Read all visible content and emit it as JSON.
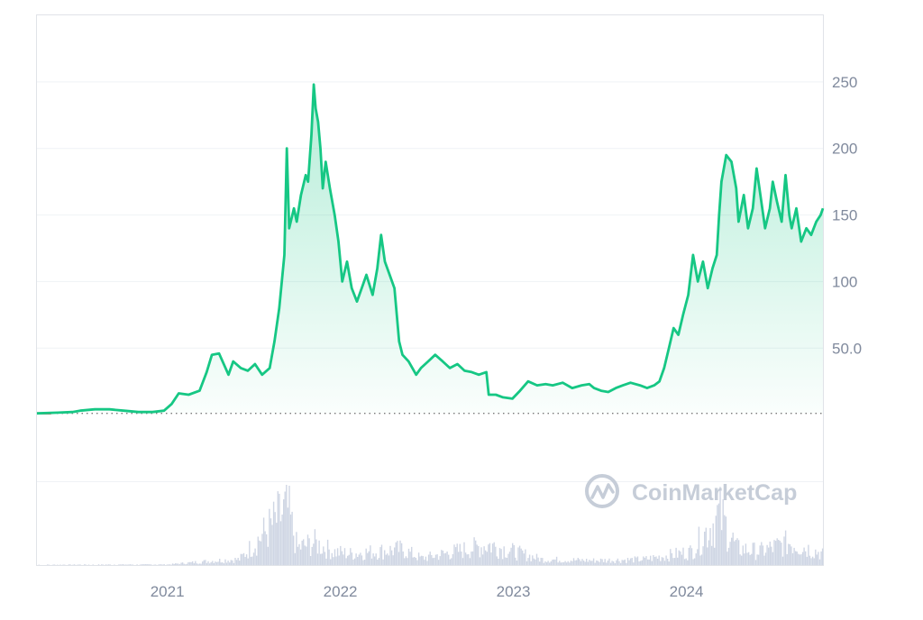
{
  "watermark": {
    "text": "CoinMarketCap",
    "icon": "coinmarketcap-logo-icon"
  },
  "colors": {
    "line": "#16c784",
    "area_top": "#16c784",
    "baseline_dots": "#7a7a7a",
    "pre_baseline": "#ea3943",
    "grid": "#eff2f5",
    "frame": "#e0e3e8",
    "tick_text": "#808a9d",
    "volume": "#cfd6e4",
    "watermark": "#c6cdd8"
  },
  "chart_data": {
    "type": "area",
    "title": "",
    "xlabel": "",
    "ylabel": "",
    "xlim": [
      "2020-04-01",
      "2024-10-15"
    ],
    "ylim": [
      -50,
      300
    ],
    "y_ticks": [
      50,
      100,
      150,
      200,
      250
    ],
    "y_tick_labels": [
      "50.0",
      "100",
      "150",
      "200",
      "250"
    ],
    "x_ticks": [
      "2021-01-01",
      "2022-01-01",
      "2023-01-01",
      "2024-01-01"
    ],
    "x_tick_labels": [
      "2021",
      "2022",
      "2023",
      "2024"
    ],
    "baseline": 1,
    "grid": true,
    "legend": "none",
    "series": [
      {
        "x": [
          "2020-04-01",
          "2020-05-15",
          "2020-06-15",
          "2020-07-01",
          "2020-08-01",
          "2020-09-01",
          "2020-10-01",
          "2020-11-01",
          "2020-12-01",
          "2020-12-25",
          "2021-01-10",
          "2021-01-25",
          "2021-02-15",
          "2021-03-10",
          "2021-03-25",
          "2021-04-05",
          "2021-04-20",
          "2021-05-10",
          "2021-05-20",
          "2021-06-05",
          "2021-06-20",
          "2021-07-05",
          "2021-07-20",
          "2021-08-05",
          "2021-08-15",
          "2021-08-25",
          "2021-09-05",
          "2021-09-10",
          "2021-09-15",
          "2021-09-25",
          "2021-10-01",
          "2021-10-10",
          "2021-10-20",
          "2021-10-25",
          "2021-11-01",
          "2021-11-06",
          "2021-11-10",
          "2021-11-15",
          "2021-11-20",
          "2021-11-25",
          "2021-12-01",
          "2021-12-10",
          "2021-12-20",
          "2021-12-28",
          "2022-01-05",
          "2022-01-15",
          "2022-01-25",
          "2022-02-05",
          "2022-02-15",
          "2022-02-25",
          "2022-03-10",
          "2022-03-20",
          "2022-03-28",
          "2022-04-05",
          "2022-04-15",
          "2022-04-25",
          "2022-05-05",
          "2022-05-12",
          "2022-05-25",
          "2022-06-10",
          "2022-06-20",
          "2022-07-05",
          "2022-07-20",
          "2022-08-05",
          "2022-08-20",
          "2022-09-05",
          "2022-09-20",
          "2022-10-05",
          "2022-10-20",
          "2022-11-05",
          "2022-11-10",
          "2022-11-25",
          "2022-12-10",
          "2022-12-30",
          "2023-01-15",
          "2023-02-01",
          "2023-02-20",
          "2023-03-10",
          "2023-03-25",
          "2023-04-15",
          "2023-05-05",
          "2023-05-25",
          "2023-06-10",
          "2023-06-20",
          "2023-07-05",
          "2023-07-20",
          "2023-08-05",
          "2023-08-20",
          "2023-09-05",
          "2023-09-25",
          "2023-10-10",
          "2023-10-25",
          "2023-11-05",
          "2023-11-15",
          "2023-11-25",
          "2023-12-05",
          "2023-12-15",
          "2023-12-25",
          "2024-01-05",
          "2024-01-15",
          "2024-01-25",
          "2024-02-05",
          "2024-02-15",
          "2024-02-25",
          "2024-03-05",
          "2024-03-10",
          "2024-03-15",
          "2024-03-25",
          "2024-04-05",
          "2024-04-15",
          "2024-04-20",
          "2024-05-01",
          "2024-05-10",
          "2024-05-20",
          "2024-05-28",
          "2024-06-05",
          "2024-06-15",
          "2024-06-25",
          "2024-07-01",
          "2024-07-10",
          "2024-07-20",
          "2024-07-28",
          "2024-08-05",
          "2024-08-10",
          "2024-08-20",
          "2024-08-30",
          "2024-09-10",
          "2024-09-20",
          "2024-10-01",
          "2024-10-10",
          "2024-10-15"
        ],
        "y": [
          1,
          1.5,
          2,
          3,
          4,
          4,
          3,
          2,
          2,
          3,
          8,
          16,
          15,
          18,
          32,
          45,
          46,
          30,
          40,
          35,
          33,
          38,
          30,
          35,
          55,
          80,
          120,
          200,
          140,
          155,
          145,
          165,
          180,
          175,
          210,
          248,
          230,
          220,
          200,
          170,
          190,
          170,
          150,
          130,
          100,
          115,
          95,
          85,
          95,
          105,
          90,
          110,
          135,
          115,
          105,
          95,
          55,
          45,
          40,
          30,
          35,
          40,
          45,
          40,
          35,
          38,
          33,
          32,
          30,
          32,
          15,
          15,
          13,
          12,
          18,
          25,
          22,
          23,
          22,
          24,
          20,
          22,
          23,
          20,
          18,
          17,
          20,
          22,
          24,
          22,
          20,
          22,
          25,
          35,
          50,
          65,
          60,
          75,
          90,
          120,
          100,
          115,
          95,
          110,
          120,
          150,
          175,
          195,
          190,
          170,
          145,
          165,
          140,
          155,
          185,
          165,
          140,
          155,
          175,
          160,
          145,
          180,
          150,
          140,
          155,
          130,
          140,
          135,
          145,
          150,
          155
        ],
        "start_segment": {
          "x": [
            "2020-04-01",
            "2020-05-01"
          ],
          "y": [
            1,
            1
          ]
        }
      }
    ],
    "volume": {
      "x": [
        "2020-04-01",
        "2021-01-01",
        "2021-04-15",
        "2021-06-01",
        "2021-09-10",
        "2021-10-01",
        "2021-11-05",
        "2021-12-15",
        "2022-01-20",
        "2022-05-10",
        "2022-06-20",
        "2022-11-10",
        "2023-03-01",
        "2023-06-15",
        "2023-10-01",
        "2023-11-15",
        "2024-01-10",
        "2024-03-10",
        "2024-04-15",
        "2024-06-01",
        "2024-08-05",
        "2024-10-15"
      ],
      "y": [
        0.3,
        0.5,
        4,
        5,
        50,
        15,
        20,
        12,
        10,
        14,
        6,
        18,
        5,
        4,
        5,
        8,
        12,
        45,
        15,
        12,
        20,
        10
      ]
    }
  }
}
